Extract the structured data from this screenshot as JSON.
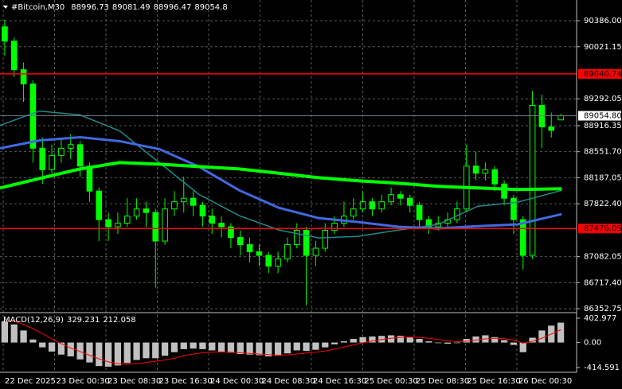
{
  "chart_data": [
    {
      "type": "candlestick",
      "title": "#Bitcoin,M30",
      "xlim": [
        0,
        60
      ],
      "xticks": [
        {
          "value": 0.34,
          "label": "22 Dec 2025"
        },
        {
          "value": 5.79,
          "label": "23 Dec 00:30"
        },
        {
          "value": 11.24,
          "label": "23 Dec 08:30"
        },
        {
          "value": 16.69,
          "label": "23 Dec 16:30"
        },
        {
          "value": 22.14,
          "label": "24 Dec 00:30"
        },
        {
          "value": 27.59,
          "label": "24 Dec 08:30"
        },
        {
          "value": 33.04,
          "label": "24 Dec 16:30"
        },
        {
          "value": 38.49,
          "label": "25 Dec 00:30"
        },
        {
          "value": 43.94,
          "label": "25 Dec 08:30"
        },
        {
          "value": 49.39,
          "label": "25 Dec 16:30"
        },
        {
          "value": 54.84,
          "label": "26 Dec 00:30"
        }
      ],
      "ylim": [
        86309,
        90676
      ],
      "yticks": [
        {
          "value": 90386,
          "label": "90386.00"
        },
        {
          "value": 90021.15,
          "label": "90021.15"
        },
        {
          "value": 89292.05,
          "label": "89292.05"
        },
        {
          "value": 88916.35,
          "label": "88916.35"
        },
        {
          "value": 88551.7,
          "label": "88551.70"
        },
        {
          "value": 88187.05,
          "label": "88187.05"
        },
        {
          "value": 87822.4,
          "label": "87822.40"
        },
        {
          "value": 87082.05,
          "label": "87082.05"
        },
        {
          "value": 86717.4,
          "label": "86717.40"
        },
        {
          "value": 86352.75,
          "label": "86352.75"
        }
      ],
      "grid": true,
      "color": "#00ff00",
      "open": [
        90300,
        90100,
        89700,
        89500,
        88600,
        88300,
        88500,
        88600,
        88650,
        88350,
        88000,
        87600,
        87500,
        87550,
        87650,
        87750,
        87700,
        87300,
        87750,
        87850,
        87900,
        87800,
        87650,
        87550,
        87500,
        87350,
        87250,
        87150,
        87100,
        86950,
        87050,
        87250,
        87450,
        87100,
        87200,
        87450,
        87550,
        87650,
        87750,
        87850,
        87750,
        87850,
        87950,
        87900,
        87800,
        87600,
        87500,
        87550,
        87600,
        87750,
        88350,
        88250,
        88300,
        88100,
        87900,
        87600,
        87100,
        89200,
        88900,
        88996.73
      ],
      "high": [
        90400,
        90150,
        89800,
        89550,
        88750,
        88650,
        88750,
        88800,
        88700,
        88400,
        88050,
        87700,
        87700,
        87900,
        87900,
        87850,
        87750,
        87900,
        88000,
        88200,
        88000,
        87850,
        87750,
        87650,
        87550,
        87450,
        87350,
        87250,
        87150,
        87150,
        87350,
        87550,
        87500,
        87300,
        87550,
        87650,
        87850,
        87900,
        88000,
        87900,
        87950,
        88050,
        88000,
        87950,
        87850,
        87650,
        87650,
        87700,
        87850,
        88650,
        88550,
        88400,
        88350,
        88150,
        87950,
        87650,
        89400,
        89350,
        89100,
        89081.49
      ],
      "low": [
        89900,
        89600,
        89250,
        88400,
        88100,
        88250,
        88400,
        88450,
        88200,
        87850,
        87300,
        87300,
        87400,
        87500,
        87600,
        87500,
        86650,
        87250,
        87650,
        87700,
        87650,
        87500,
        87400,
        87350,
        87200,
        87100,
        87000,
        86950,
        86850,
        86850,
        87000,
        87200,
        86400,
        86950,
        87150,
        87400,
        87500,
        87600,
        87700,
        87650,
        87700,
        87800,
        87800,
        87700,
        87500,
        87400,
        87450,
        87500,
        87550,
        87700,
        88150,
        88150,
        88000,
        87800,
        87400,
        86900,
        87050,
        88600,
        88750,
        88996.47
      ],
      "close": [
        90100,
        89700,
        89500,
        88600,
        88300,
        88500,
        88600,
        88650,
        88350,
        88000,
        87600,
        87500,
        87550,
        87650,
        87750,
        87700,
        87300,
        87750,
        87850,
        87900,
        87800,
        87650,
        87550,
        87500,
        87350,
        87250,
        87150,
        87100,
        86950,
        87050,
        87250,
        87450,
        87100,
        87200,
        87450,
        87550,
        87650,
        87750,
        87850,
        87750,
        87850,
        87950,
        87900,
        87800,
        87600,
        87500,
        87550,
        87600,
        87750,
        88350,
        88250,
        88300,
        88100,
        87900,
        87600,
        87100,
        89200,
        88900,
        88850,
        89054.8
      ],
      "lines": [
        {
          "color": "#1f8a8a",
          "width": 1.5,
          "x": [
            0,
            4.2,
            8.5,
            12.7,
            16.9,
            21.1,
            25.4,
            29.6,
            33.8,
            38,
            42.3,
            46.5,
            50.7,
            54.9,
            59.6
          ],
          "values": [
            88921,
            89121,
            89066,
            88843,
            88399,
            87955,
            87655,
            87455,
            87344,
            87366,
            87455,
            87533,
            87788,
            87844,
            88010
          ]
        },
        {
          "color": "#4169e1",
          "width": 3,
          "x": [
            0,
            4.2,
            8.5,
            12.7,
            16.9,
            21.1,
            25.4,
            29.6,
            33.8,
            38,
            42.3,
            46.5,
            50.7,
            54.9,
            59.6
          ],
          "values": [
            88599,
            88710,
            88754,
            88699,
            88588,
            88343,
            88010,
            87766,
            87622,
            87566,
            87500,
            87477,
            87510,
            87533,
            87677
          ]
        },
        {
          "color": "#00ff00",
          "width": 4,
          "x": [
            0,
            4.2,
            8.5,
            12.7,
            16.9,
            21.1,
            25.4,
            29.6,
            33.8,
            38,
            42.3,
            46.5,
            50.7,
            54.9,
            59.6
          ],
          "values": [
            88044,
            88177,
            88310,
            88399,
            88377,
            88343,
            88310,
            88250,
            88188,
            88144,
            88110,
            88066,
            88044,
            88022,
            88033
          ]
        }
      ],
      "hlines": [
        {
          "value": 89640.74,
          "label": "89640.74",
          "color": "#ff0000"
        },
        {
          "value": 87476.05,
          "label": "87476.05",
          "color": "#ff0000"
        },
        {
          "value": 89054.8,
          "label": "89054.80",
          "color": "#6e7b8b"
        }
      ]
    },
    {
      "type": "bar",
      "title": "MACD(12,26,9)",
      "ylim": [
        -467,
        469
      ],
      "yticks": [
        402.977,
        {
          "value": 0,
          "label": "0.00"
        },
        -414.591
      ],
      "series": [
        {
          "color": "#c0c0c0",
          "values": [
            350,
            300,
            200,
            50,
            -80,
            -150,
            -200,
            -230,
            -280,
            -330,
            -390,
            -400,
            -380,
            -340,
            -290,
            -260,
            -260,
            -220,
            -160,
            -110,
            -100,
            -110,
            -130,
            -150,
            -170,
            -190,
            -200,
            -210,
            -230,
            -220,
            -180,
            -130,
            -140,
            -120,
            -80,
            -30,
            20,
            60,
            90,
            100,
            110,
            120,
            110,
            90,
            60,
            20,
            -10,
            -20,
            -10,
            60,
            100,
            120,
            90,
            40,
            -40,
            -160,
            80,
            200,
            280,
            329.231
          ]
        },
        {
          "type": "line",
          "color": "#ff0000",
          "values": [
            380,
            350,
            300,
            230,
            150,
            60,
            -20,
            -90,
            -150,
            -210,
            -270,
            -320,
            -350,
            -360,
            -350,
            -330,
            -310,
            -290,
            -260,
            -220,
            -190,
            -170,
            -160,
            -155,
            -160,
            -170,
            -180,
            -190,
            -200,
            -210,
            -205,
            -190,
            -175,
            -160,
            -140,
            -110,
            -75,
            -40,
            -5,
            25,
            50,
            70,
            85,
            90,
            85,
            70,
            50,
            30,
            15,
            20,
            40,
            60,
            70,
            65,
            40,
            -10,
            20,
            70,
            140,
            212.058
          ]
        }
      ]
    }
  ]
}
